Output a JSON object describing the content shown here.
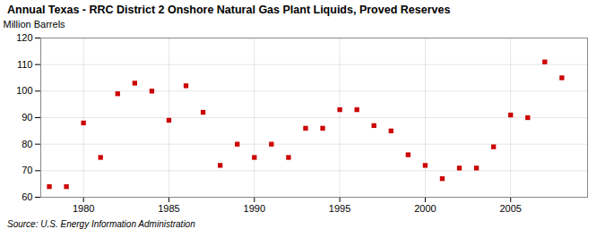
{
  "chart_data": {
    "type": "scatter",
    "title": "Annual Texas - RRC District 2 Onshore Natural Gas Plant Liquids,  Proved Reserves",
    "ylabel": "Million Barrels",
    "source": "Source: U.S. Energy Information Administration",
    "x": [
      1978,
      1979,
      1980,
      1981,
      1982,
      1983,
      1984,
      1985,
      1986,
      1987,
      1988,
      1989,
      1990,
      1991,
      1992,
      1993,
      1994,
      1995,
      1996,
      1997,
      1998,
      1999,
      2000,
      2001,
      2002,
      2003,
      2004,
      2005,
      2006,
      2007,
      2008
    ],
    "values": [
      64,
      64,
      88,
      75,
      99,
      103,
      100,
      89,
      102,
      92,
      72,
      80,
      75,
      80,
      75,
      86,
      86,
      93,
      93,
      87,
      85,
      76,
      72,
      67,
      71,
      71,
      79,
      91,
      90,
      111,
      105
    ],
    "color": "#cc0000",
    "marker": "square",
    "xlim": [
      1977.5,
      2009.5
    ],
    "xticks": [
      1980,
      1985,
      1990,
      1995,
      2000,
      2005
    ],
    "ylim": [
      60,
      120
    ],
    "yticks": [
      60,
      70,
      80,
      90,
      100,
      110,
      120
    ],
    "grid": true
  }
}
